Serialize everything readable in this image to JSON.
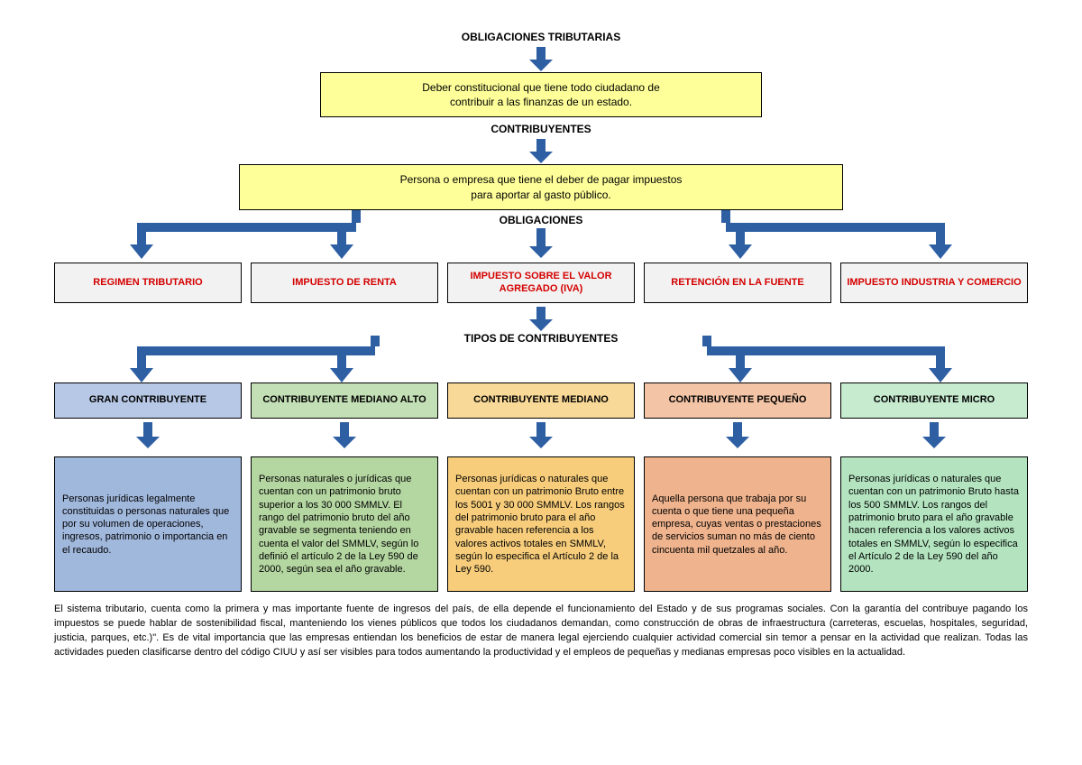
{
  "colors": {
    "arrow": "#2e5fa3",
    "arrow_stroke": "#1f3f6e",
    "yellow": "#feff99",
    "grey": "#f2f2f2",
    "red_text": "#d40000",
    "type_colors": [
      "#b7c8e6",
      "#c3dfb5",
      "#f9d998",
      "#f3c4a6",
      "#c6ebcf"
    ],
    "desc_colors": [
      "#a1b8dd",
      "#b4d6a1",
      "#f7cd7b",
      "#efb38d",
      "#b3e4bf"
    ]
  },
  "titles": {
    "main": "OBLIGACIONES TRIBUTARIAS",
    "contribuyentes": "CONTRIBUYENTES",
    "obligaciones": "OBLIGACIONES",
    "tipos": "TIPOS DE CONTRIBUYENTES"
  },
  "yellow_boxes": {
    "def1": "Deber constitucional que tiene todo ciudadano de\ncontribuir a las finanzas de un estado.",
    "def2": "Persona o empresa que tiene el deber de pagar impuestos\npara aportar al gasto público."
  },
  "obligaciones": [
    "REGIMEN TRIBUTARIO",
    "IMPUESTO DE RENTA",
    "IMPUESTO SOBRE EL VALOR AGREGADO (IVA)",
    "RETENCIÓN EN LA FUENTE",
    "IMPUESTO INDUSTRIA Y COMERCIO"
  ],
  "tipos": [
    {
      "label": "GRAN CONTRIBUYENTE"
    },
    {
      "label": "CONTRIBUYENTE MEDIANO ALTO"
    },
    {
      "label": "CONTRIBUYENTE MEDIANO"
    },
    {
      "label": "CONTRIBUYENTE PEQUEÑO"
    },
    {
      "label": "CONTRIBUYENTE MICRO"
    }
  ],
  "descripciones": [
    "Personas jurídicas legalmente constituidas o personas naturales que por su volumen de operaciones, ingresos, patrimonio o importancia en el recaudo.",
    "Personas naturales o jurídicas que cuentan con un patrimonio bruto superior a los 30 000 SMMLV. El rango del patrimonio bruto del año gravable se segmenta teniendo en cuenta el valor del SMMLV, según lo definió el artículo 2 de la Ley 590 de 2000, según sea el año gravable.",
    "Personas jurídicas o naturales que cuentan con un patrimonio Bruto entre los 5001 y 30 000 SMMLV. Los rangos del patrimonio bruto para el año gravable hacen referencia a los valores activos totales en SMMLV, según lo especifica el Artículo 2 de la Ley 590.",
    "Aquella persona que trabaja por su cuenta o que tiene una pequeña empresa, cuyas ventas o prestaciones de servicios suman no más de ciento cincuenta mil quetzales al año.",
    "Personas jurídicas o naturales que cuentan con un patrimonio Bruto hasta los 500 SMMLV. Los rangos del patrimonio bruto para el año gravable hacen referencia a los valores activos totales en SMMLV, según lo especifica el Artículo 2 de la Ley 590 del año 2000."
  ],
  "footer": "El sistema tributario, cuenta como la primera y mas importante fuente  de ingresos del país, de ella depende el funcionamiento del Estado y de sus programas sociales. Con la garantía del contribuye pagando los impuestos se puede hablar de sostenibilidad fiscal, manteniendo los vienes públicos que todos los ciudadanos demandan, como construcción de obras de infraestructura (carreteras, escuelas, hospitales, seguridad, justicia, parques, etc.)\".  Es de vital importancia que las empresas entiendan los beneficios de estar de manera legal ejerciendo cualquier actividad comercial sin temor a pensar en la actividad que realizan.  Todas las actividades pueden clasificarse dentro del código CIUU y así ser visibles para todos aumentando la productividad y el empleos de pequeñas y medianas empresas poco visibles en la actualidad.",
  "layout": {
    "branch_positions_pct": [
      9,
      29.5,
      50,
      70.5,
      91
    ],
    "branch4_positions_pct": [
      9,
      29.5,
      70.5,
      91
    ]
  }
}
